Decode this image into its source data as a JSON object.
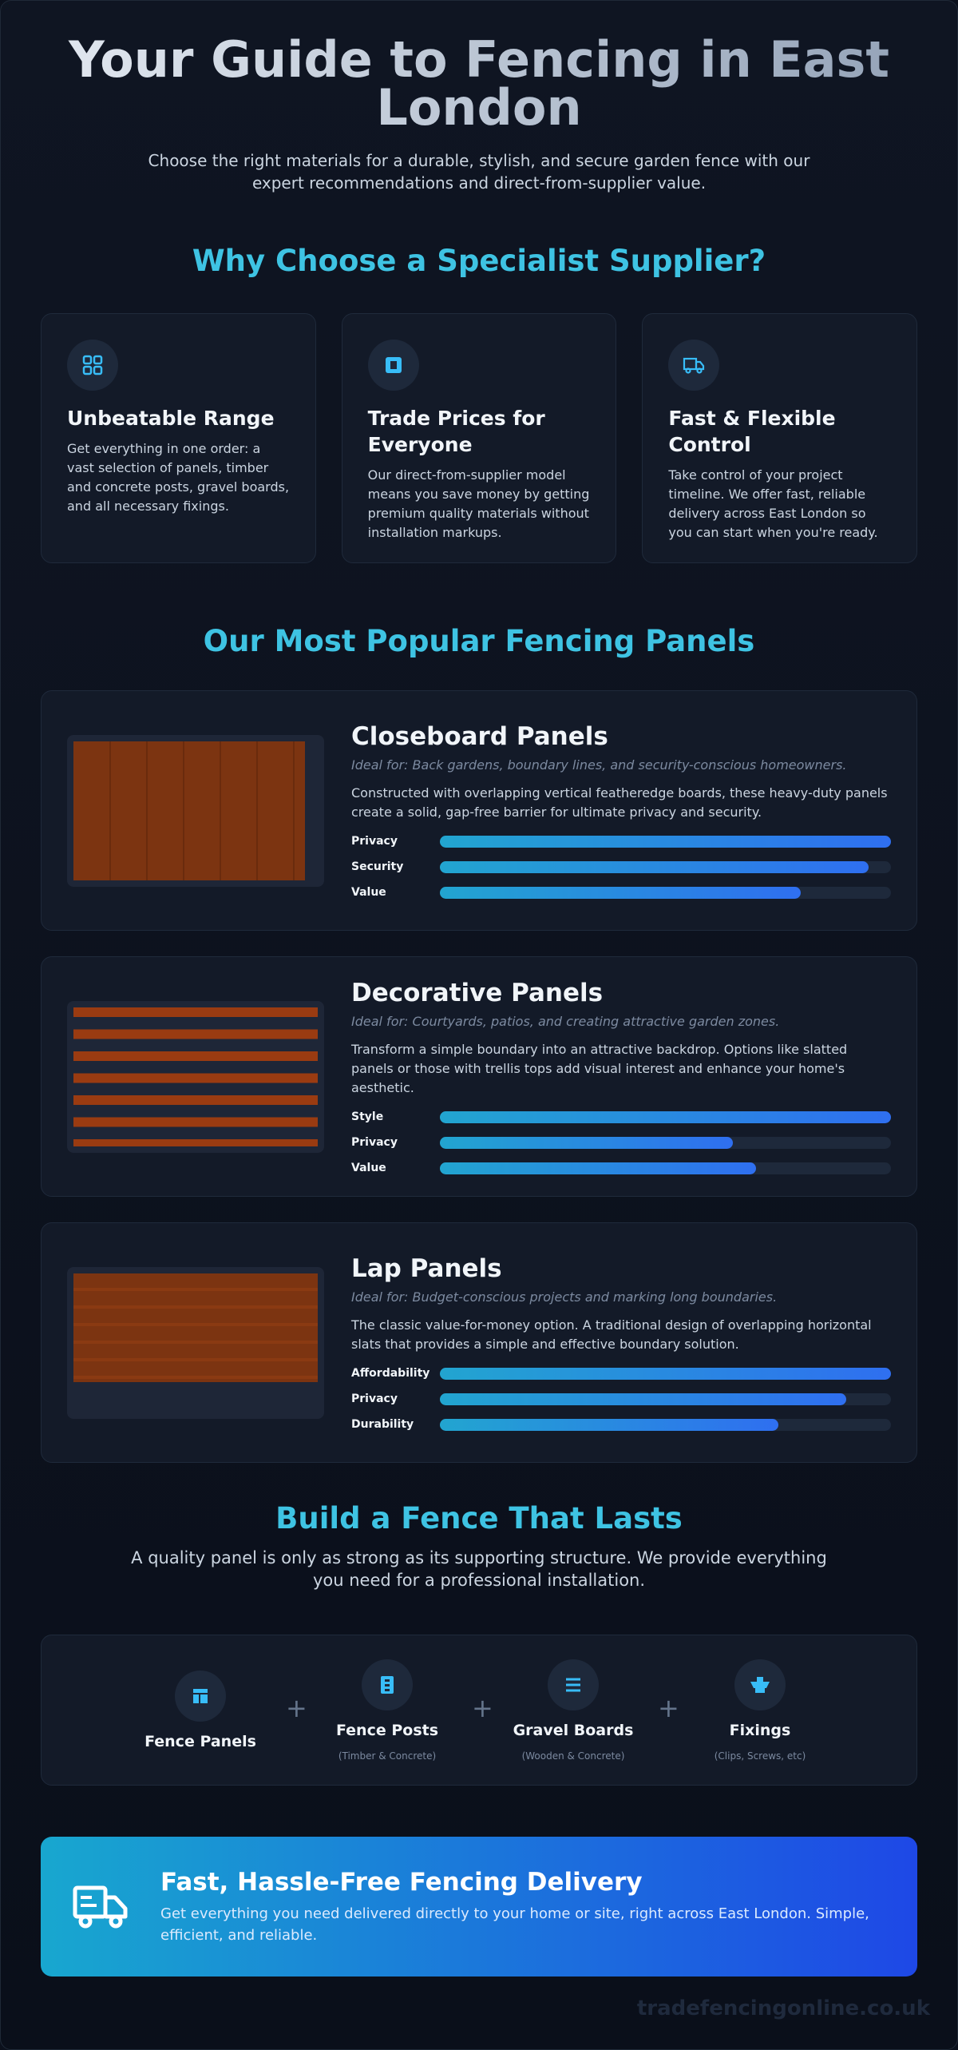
{
  "header": {
    "title": "Your Guide to Fencing in East London",
    "subtitle": "Choose the right materials for a durable, stylish, and secure garden fence with our expert recommendations and direct-from-supplier value."
  },
  "why": {
    "heading": "Why Choose a Specialist Supplier?",
    "cards": [
      {
        "title": "Unbeatable Range",
        "text": "Get everything in one order: a vast selection of panels, timber and concrete posts, gravel boards, and all necessary fixings."
      },
      {
        "title": "Trade Prices for Everyone",
        "text": "Our direct-from-supplier model means you save money by getting premium quality materials without installation markups."
      },
      {
        "title": "Fast & Flexible Control",
        "text": "Take control of your project timeline. We offer fast, reliable delivery across East London so you can start when you're ready."
      }
    ]
  },
  "panels": {
    "heading": "Our Most Popular Fencing Panels",
    "xlim": [
      0,
      100
    ],
    "items": [
      {
        "name": "Closeboard Panels",
        "ideal": "Ideal for: Back gardens, boundary lines, and security-conscious homeowners.",
        "description": "Constructed with overlapping vertical featheredge boards, these heavy-duty panels create a solid, gap-free barrier for ultimate privacy and security.",
        "ratings": [
          {
            "label": "Privacy",
            "value": 100
          },
          {
            "label": "Security",
            "value": 95
          },
          {
            "label": "Value",
            "value": 80
          }
        ]
      },
      {
        "name": "Decorative Panels",
        "ideal": "Ideal for: Courtyards, patios, and creating attractive garden zones.",
        "description": "Transform a simple boundary into an attractive backdrop. Options like slatted panels or those with trellis tops add visual interest and enhance your home's aesthetic.",
        "ratings": [
          {
            "label": "Style",
            "value": 100
          },
          {
            "label": "Privacy",
            "value": 65
          },
          {
            "label": "Value",
            "value": 70
          }
        ]
      },
      {
        "name": "Lap Panels",
        "ideal": "Ideal for: Budget-conscious projects and marking long boundaries.",
        "description": "The classic value-for-money option. A traditional design of overlapping horizontal slats that provides a simple and effective boundary solution.",
        "ratings": [
          {
            "label": "Affordability",
            "value": 100
          },
          {
            "label": "Privacy",
            "value": 90
          },
          {
            "label": "Durability",
            "value": 75
          }
        ]
      }
    ]
  },
  "build": {
    "heading": "Build a Fence That Lasts",
    "text": "A quality panel is only as strong as its supporting structure. We provide everything you need for a professional installation.",
    "components": [
      {
        "name": "Fence Panels"
      },
      {
        "name": "Fence Posts",
        "note": "(Timber & Concrete)"
      },
      {
        "name": "Gravel Boards",
        "note": "(Wooden & Concrete)"
      },
      {
        "name": "Fixings",
        "note": "(Clips, Screws, etc)"
      }
    ]
  },
  "delivery": {
    "title": "Fast, Hassle-Free Fencing Delivery",
    "text": "Get everything you need delivered directly to your home or site, right across East London. Simple, efficient, and reliable."
  },
  "watermark": "tradefencingonline.co.uk"
}
